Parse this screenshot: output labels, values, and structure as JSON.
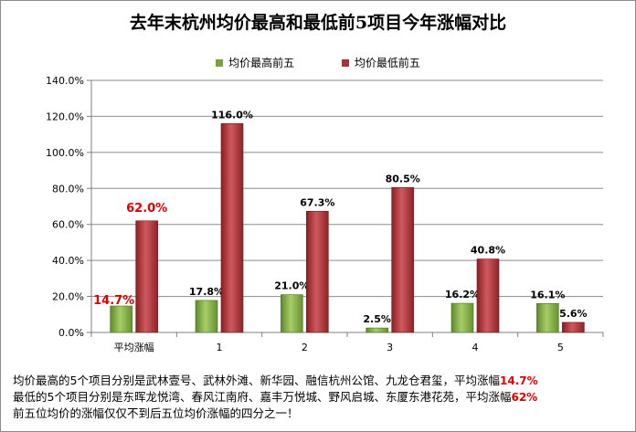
{
  "chart_data": {
    "type": "bar",
    "title": "去年末杭州均价最高和最低前5项目今年涨幅对比",
    "categories": [
      "平均涨幅",
      "1",
      "2",
      "3",
      "4",
      "5"
    ],
    "series": [
      {
        "name": "均价最高前五",
        "values": [
          14.7,
          17.8,
          21.0,
          2.5,
          16.2,
          16.1
        ],
        "labels": [
          "14.7%",
          "17.8%",
          "21.0%",
          "2.5%",
          "16.2%",
          "16.1%"
        ],
        "color": "#7ba23f"
      },
      {
        "name": "均价最低前五",
        "values": [
          62.0,
          116.0,
          67.3,
          80.5,
          40.8,
          5.6
        ],
        "labels": [
          "62.0%",
          "116.0%",
          "67.3%",
          "80.5%",
          "40.8%",
          "5.6%"
        ],
        "color": "#a93237"
      }
    ],
    "ylim": [
      0,
      140
    ],
    "yticks": [
      "0.0%",
      "20.0%",
      "40.0%",
      "60.0%",
      "80.0%",
      "100.0%",
      "120.0%",
      "140.0%"
    ],
    "grid": true,
    "legend": "top-center",
    "highlight_color": "#e00000"
  },
  "footer": {
    "line1_text": "均价最高的5个项目分别是武林壹号、武林外滩、新华园、融信杭州公馆、九龙仓君玺，平均涨幅",
    "line1_value": "14.7%",
    "line2_text": "最低的5个项目分别是东晖龙悦湾、春风江南府、嘉丰万悦城、野风启城、东厦东港花苑，平均涨幅",
    "line2_value": "62%",
    "line3_text": "前五位均价的涨幅仅仅不到后五位均价涨幅的四分之一！"
  }
}
